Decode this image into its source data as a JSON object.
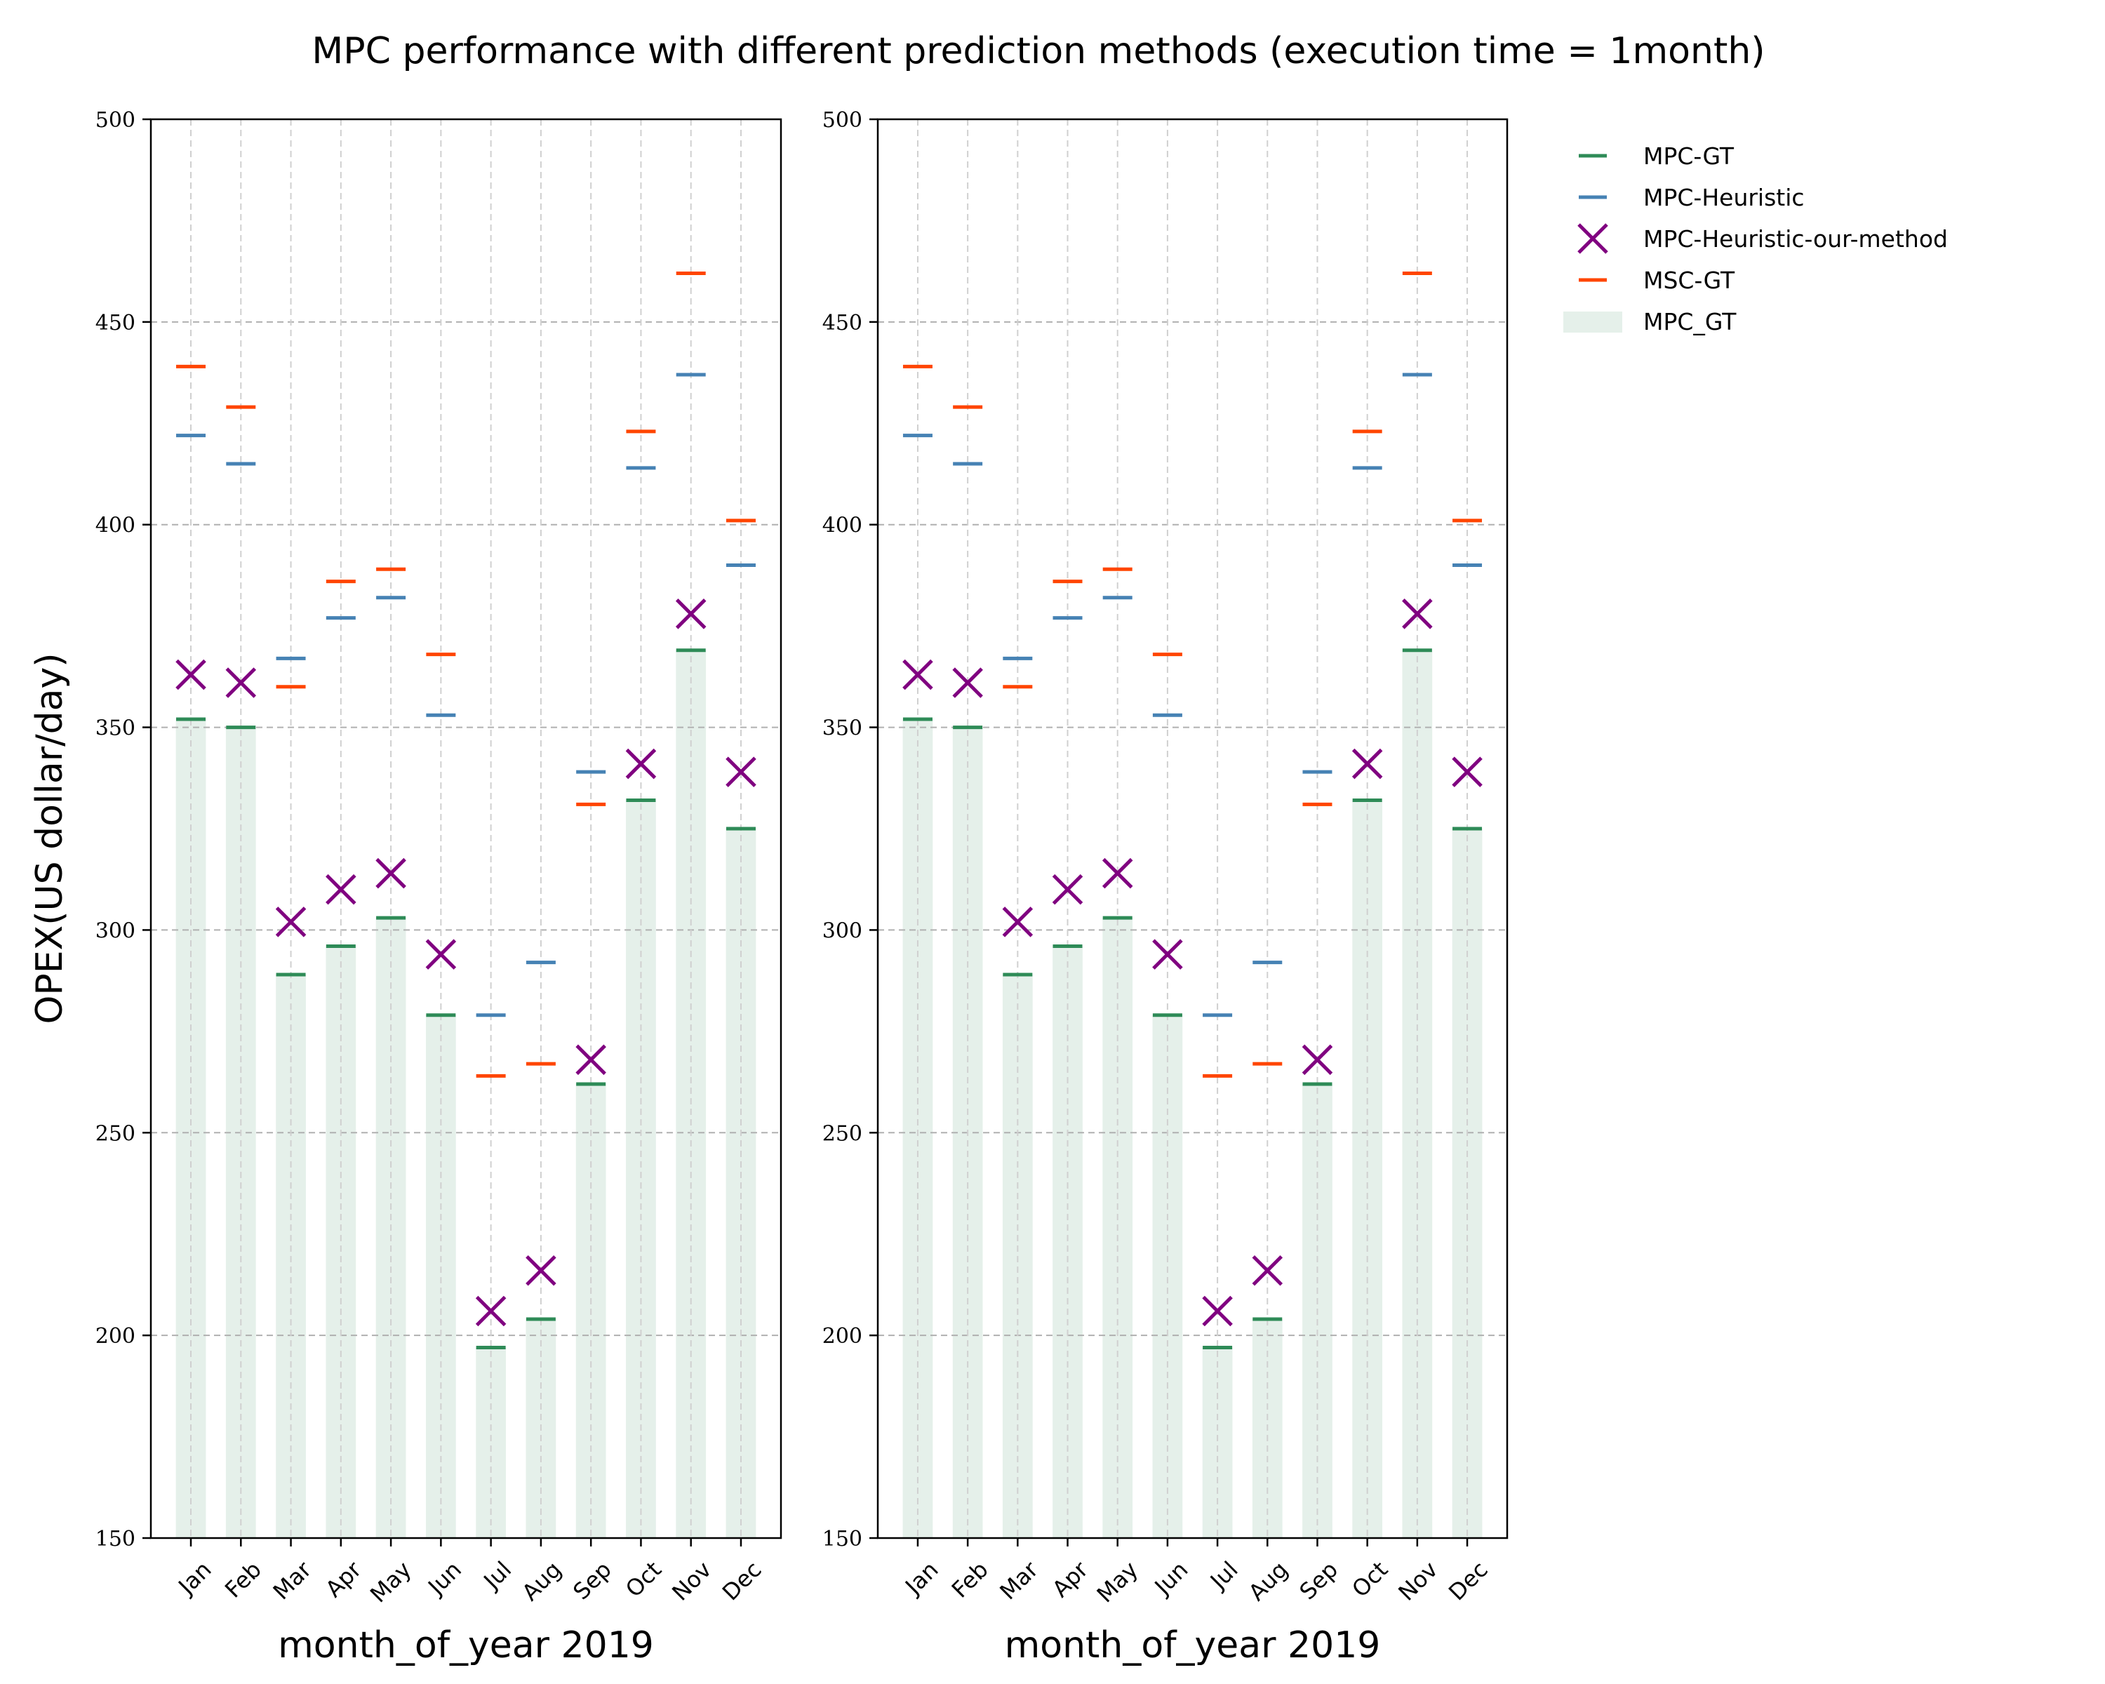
{
  "figure": {
    "title": "MPC performance with different prediction methods (execution time = 1month)"
  },
  "chart_data": {
    "type": "bar",
    "title": "MPC performance with different prediction methods (execution time = 1month)",
    "ylabel": "OPEX(US dollar/day)",
    "xlabel": "month_of_year 2019",
    "ylim": [
      150,
      500
    ],
    "yticks": [
      "150",
      "200",
      "250",
      "300",
      "350",
      "400",
      "450",
      "500"
    ],
    "categories": [
      "Jan",
      "Feb",
      "Mar",
      "Apr",
      "May",
      "Jun",
      "Jul",
      "Aug",
      "Sep",
      "Oct",
      "Nov",
      "Dec"
    ],
    "grid": true,
    "legend_position": "right, outside",
    "panels": 2,
    "series": [
      {
        "name": "MPC-GT",
        "marker": "hline",
        "color": "#2e8b57",
        "values": [
          352,
          350,
          289,
          296,
          303,
          279,
          197,
          204,
          262,
          332,
          369,
          325
        ]
      },
      {
        "name": "MPC-Heuristic",
        "marker": "hline",
        "color": "#4682b4",
        "values": [
          422,
          415,
          367,
          377,
          382,
          353,
          279,
          292,
          339,
          414,
          437,
          390
        ]
      },
      {
        "name": "MPC-Heuristic-our-method",
        "marker": "x",
        "color": "#800080",
        "values": [
          363,
          361,
          302,
          310,
          314,
          294,
          206,
          216,
          268,
          341,
          378,
          339
        ]
      },
      {
        "name": "MSC-GT",
        "marker": "hline",
        "color": "#ff4500",
        "values": [
          439,
          429,
          360,
          386,
          389,
          368,
          264,
          267,
          331,
          423,
          462,
          401
        ]
      },
      {
        "name": "MPC_GT",
        "marker": "bar",
        "color": "#e5f0ea",
        "values": [
          352,
          350,
          289,
          296,
          303,
          279,
          197,
          204,
          262,
          332,
          369,
          325
        ]
      }
    ]
  }
}
